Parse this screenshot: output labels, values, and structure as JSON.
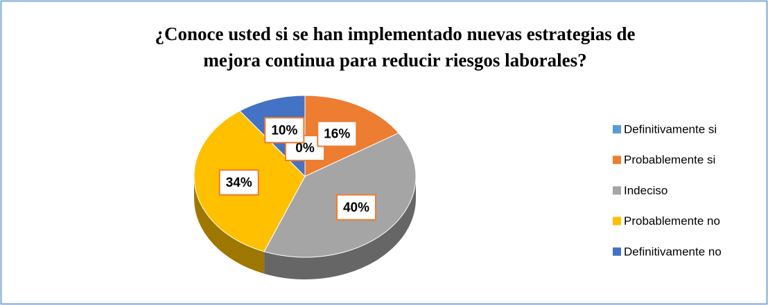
{
  "chart_data": {
    "type": "pie",
    "title": "¿Conoce usted si se han implementado nuevas estrategias de mejora continua para reducir riesgos laborales?",
    "categories": [
      "Definitivamente si",
      "Probablemente si",
      "Indeciso",
      "Probablemente no",
      "Definitivamente no"
    ],
    "values": [
      0,
      16,
      40,
      34,
      10
    ],
    "value_labels": [
      "0%",
      "16%",
      "40%",
      "34%",
      "10%"
    ],
    "colors": [
      "#5b9bd5",
      "#ed7d31",
      "#a5a5a5",
      "#ffc000",
      "#4472c4"
    ],
    "legend": "right"
  }
}
